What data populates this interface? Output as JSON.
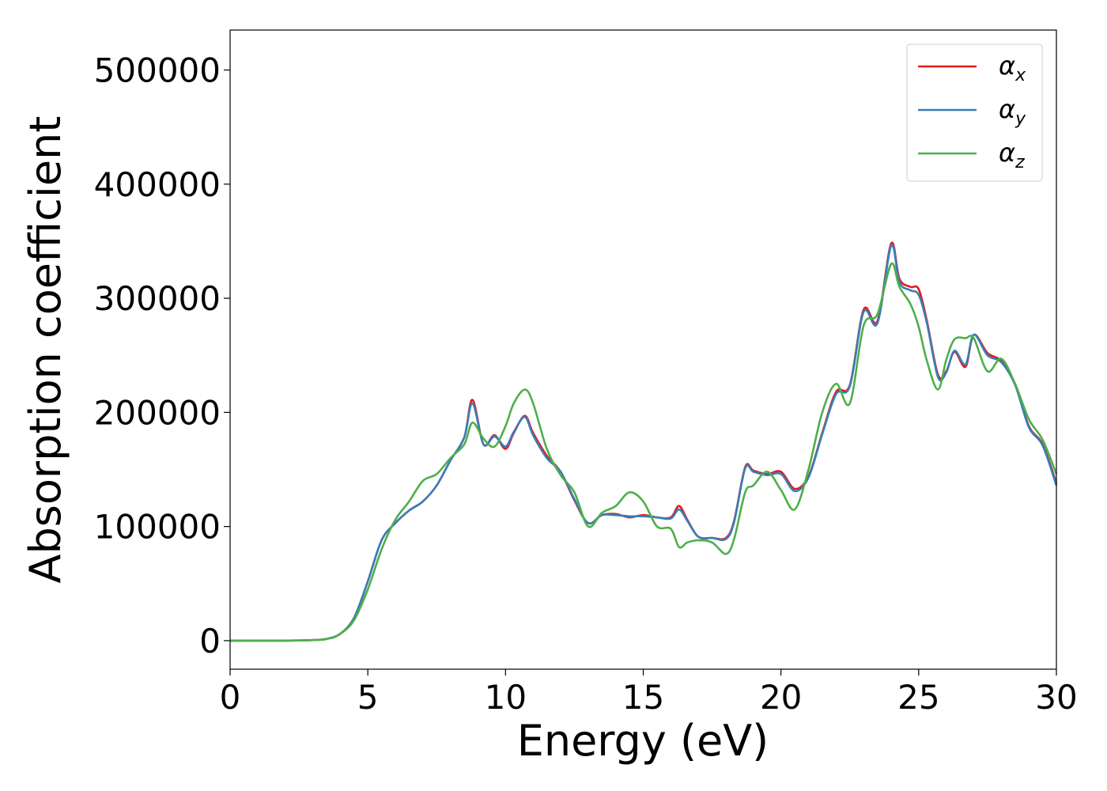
{
  "chart_data": {
    "type": "line",
    "title": "",
    "xlabel": "Energy (eV)",
    "ylabel": "Absorption coefficient",
    "xlim": [
      0,
      30
    ],
    "ylim": [
      -25000,
      535000
    ],
    "xticks": [
      0,
      5,
      10,
      15,
      20,
      25,
      30
    ],
    "yticks": [
      0,
      100000,
      200000,
      300000,
      400000,
      500000
    ],
    "grid": false,
    "legend_position": "top-right",
    "x": [
      0,
      1,
      2,
      3,
      3.5,
      4,
      4.5,
      5,
      5.5,
      6,
      6.5,
      7,
      7.5,
      8,
      8.5,
      8.8,
      9.2,
      9.6,
      10,
      10.3,
      10.7,
      11,
      11.5,
      12,
      12.5,
      13,
      13.5,
      14,
      14.5,
      15,
      15.5,
      16,
      16.3,
      16.6,
      17,
      17.5,
      18,
      18.3,
      18.7,
      19,
      19.5,
      20,
      20.5,
      21,
      21.5,
      22,
      22.5,
      23,
      23.5,
      24,
      24.3,
      24.7,
      25,
      25.3,
      25.7,
      26,
      26.3,
      26.7,
      27,
      27.5,
      28,
      28.5,
      29,
      29.5,
      30
    ],
    "series": [
      {
        "name": "α_x",
        "color": "#e41a1c",
        "values": [
          0,
          0,
          0,
          500,
          1500,
          6000,
          20000,
          52000,
          88000,
          103000,
          114000,
          122000,
          136000,
          158000,
          178000,
          211000,
          172000,
          180000,
          168000,
          182000,
          197000,
          182000,
          162000,
          148000,
          123000,
          103000,
          110000,
          111000,
          108000,
          110000,
          108000,
          108000,
          118000,
          106000,
          91000,
          90000,
          90000,
          105000,
          152000,
          149000,
          146000,
          148000,
          133000,
          144000,
          182000,
          218000,
          224000,
          290000,
          280000,
          348000,
          317000,
          310000,
          308000,
          280000,
          233000,
          236000,
          253000,
          240000,
          268000,
          252000,
          245000,
          225000,
          188000,
          172000,
          138000
        ]
      },
      {
        "name": "α_y",
        "color": "#377eb8",
        "values": [
          0,
          0,
          0,
          500,
          1500,
          6000,
          20000,
          52000,
          88000,
          103000,
          114000,
          122000,
          136000,
          158000,
          178000,
          208000,
          172000,
          179000,
          170000,
          183000,
          196000,
          180000,
          160000,
          148000,
          124000,
          103000,
          110000,
          110000,
          109000,
          109000,
          108000,
          107000,
          115000,
          105000,
          91000,
          90000,
          89000,
          104000,
          151000,
          148000,
          145000,
          146000,
          131000,
          143000,
          181000,
          216000,
          223000,
          288000,
          278000,
          346000,
          314000,
          307000,
          303000,
          278000,
          231000,
          235000,
          254000,
          242000,
          268000,
          250000,
          244000,
          224000,
          187000,
          171000,
          136000
        ]
      },
      {
        "name": "α_z",
        "color": "#4daf4a",
        "values": [
          0,
          0,
          0,
          500,
          1500,
          6000,
          18000,
          45000,
          80000,
          106000,
          122000,
          140000,
          146000,
          160000,
          172000,
          191000,
          177000,
          170000,
          188000,
          208000,
          220000,
          208000,
          168000,
          145000,
          130000,
          100000,
          112000,
          118000,
          130000,
          122000,
          100000,
          98000,
          82000,
          86000,
          88000,
          86000,
          76000,
          89000,
          130000,
          136000,
          148000,
          132000,
          115000,
          150000,
          200000,
          225000,
          208000,
          276000,
          286000,
          330000,
          310000,
          295000,
          275000,
          245000,
          220000,
          246000,
          264000,
          265000,
          265000,
          236000,
          247000,
          225000,
          194000,
          176000,
          146000
        ]
      }
    ]
  }
}
